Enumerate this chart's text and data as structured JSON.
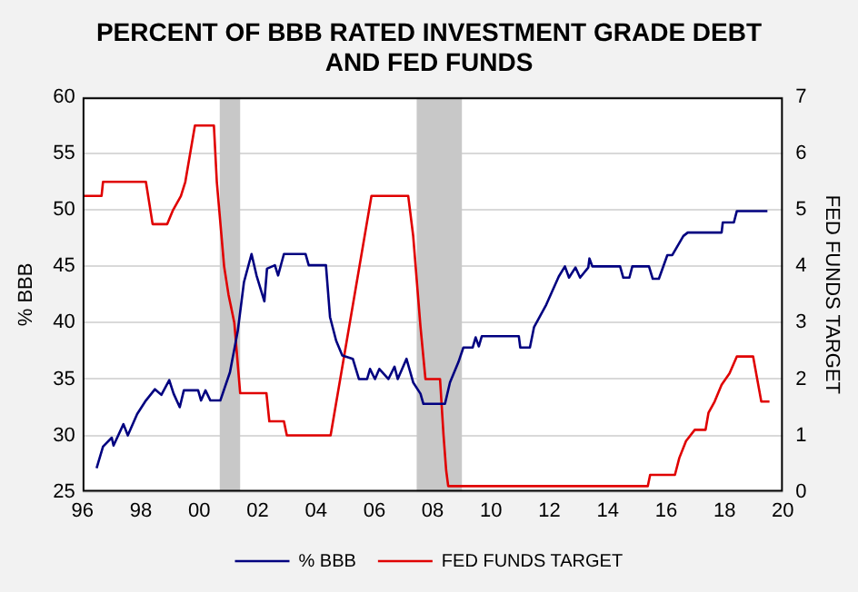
{
  "chart_data": {
    "type": "line",
    "title": "PERCENT OF BBB RATED INVESTMENT GRADE DEBT\nAND FED FUNDS",
    "ylabel": "% BBB",
    "y2label": "FED FUNDS TARGET",
    "xlim": [
      1996,
      2020
    ],
    "xticks": [
      {
        "value": 1996,
        "label": "96"
      },
      {
        "value": 1998,
        "label": "98"
      },
      {
        "value": 2000,
        "label": "00"
      },
      {
        "value": 2002,
        "label": "02"
      },
      {
        "value": 2004,
        "label": "04"
      },
      {
        "value": 2006,
        "label": "06"
      },
      {
        "value": 2008,
        "label": "08"
      },
      {
        "value": 2010,
        "label": "10"
      },
      {
        "value": 2012,
        "label": "12"
      },
      {
        "value": 2014,
        "label": "14"
      },
      {
        "value": 2016,
        "label": "16"
      },
      {
        "value": 2018,
        "label": "18"
      },
      {
        "value": 2020,
        "label": "20"
      }
    ],
    "ylim": [
      25,
      60
    ],
    "yticks": [
      25,
      30,
      35,
      40,
      45,
      50,
      55,
      60
    ],
    "y2lim": [
      0,
      7
    ],
    "y2ticks": [
      0,
      1,
      2,
      3,
      4,
      5,
      6,
      7
    ],
    "grid": "y",
    "legend": "bottom",
    "bands": [
      {
        "axis": "x",
        "from": 2000.7,
        "to": 2001.4,
        "color": "#c8c8c8"
      },
      {
        "axis": "x",
        "from": 2007.45,
        "to": 2009.0,
        "color": "#c8c8c8"
      }
    ],
    "series": [
      {
        "name": "% BBB",
        "color": "#000080",
        "x": [
          1996.48,
          1996.7,
          1997.0,
          1997.06,
          1997.4,
          1997.55,
          1997.87,
          1998.17,
          1998.48,
          1998.7,
          1998.97,
          1999.12,
          1999.33,
          1999.47,
          1999.96,
          2000.06,
          2000.21,
          2000.38,
          2000.72,
          2001.05,
          2001.32,
          2001.53,
          2001.79,
          2001.96,
          2002.23,
          2002.32,
          2002.59,
          2002.7,
          2002.9,
          2003.64,
          2003.75,
          2004.34,
          2004.48,
          2004.69,
          2004.9,
          2005.26,
          2005.47,
          2005.75,
          2005.85,
          2006.02,
          2006.17,
          2006.48,
          2006.69,
          2006.8,
          2007.1,
          2007.33,
          2007.58,
          2007.68,
          2008.42,
          2008.59,
          2008.88,
          2009.05,
          2009.37,
          2009.47,
          2009.58,
          2009.68,
          2010.95,
          2011.0,
          2011.33,
          2011.47,
          2011.89,
          2012.32,
          2012.53,
          2012.67,
          2012.89,
          2013.05,
          2013.33,
          2013.37,
          2013.47,
          2014.42,
          2014.53,
          2014.74,
          2014.84,
          2015.26,
          2015.41,
          2015.54,
          2015.75,
          2016.04,
          2016.21,
          2016.59,
          2016.74,
          2017.9,
          2017.94,
          2018.32,
          2018.42,
          2019.47
        ],
        "values": [
          27.1,
          29.0,
          29.8,
          29.1,
          31.0,
          30.0,
          31.9,
          33.1,
          34.1,
          33.6,
          34.9,
          33.7,
          32.5,
          34.0,
          34.0,
          33.1,
          34.0,
          33.1,
          33.1,
          35.6,
          39.3,
          43.6,
          46.1,
          44.2,
          41.9,
          44.8,
          45.1,
          44.2,
          46.1,
          46.1,
          45.1,
          45.1,
          40.5,
          38.4,
          37.1,
          36.8,
          35.0,
          35.0,
          35.9,
          35.0,
          35.9,
          35.0,
          36.1,
          35.0,
          36.8,
          34.7,
          33.7,
          32.8,
          32.8,
          34.7,
          36.5,
          37.8,
          37.8,
          38.7,
          37.9,
          38.8,
          38.8,
          37.8,
          37.8,
          39.6,
          41.6,
          44.1,
          45.0,
          44.0,
          44.9,
          44.0,
          44.9,
          45.7,
          45.0,
          45.0,
          44.0,
          44.0,
          45.0,
          45.0,
          45.0,
          43.9,
          43.9,
          46.0,
          46.0,
          47.7,
          48.0,
          48.0,
          48.9,
          48.9,
          49.9,
          49.9
        ]
      },
      {
        "name": "FED FUNDS TARGET",
        "color": "#e00000",
        "axis": "y2",
        "x": [
          1996,
          1996.65,
          1996.7,
          1998.17,
          1998.4,
          1998.9,
          1999.1,
          1999.37,
          1999.52,
          1999.85,
          2000.5,
          2000.6,
          2000.85,
          2001.0,
          2001.2,
          2001.4,
          2002.3,
          2002.4,
          2002.9,
          2003.0,
          2004.5,
          2005.9,
          2007.1,
          2007.16,
          2007.33,
          2007.58,
          2007.75,
          2008.25,
          2008.37,
          2008.46,
          2008.53,
          2015.37,
          2015.45,
          2016.3,
          2016.45,
          2016.68,
          2016.98,
          2017.35,
          2017.45,
          2017.66,
          2017.9,
          2018.17,
          2018.42,
          2018.98,
          2019.26,
          2019.54
        ],
        "values": [
          5.25,
          5.25,
          5.5,
          5.5,
          4.75,
          4.75,
          5.0,
          5.25,
          5.5,
          6.5,
          6.5,
          5.5,
          4.0,
          3.5,
          3.0,
          1.75,
          1.75,
          1.25,
          1.25,
          1.0,
          1.0,
          5.25,
          5.25,
          5.25,
          4.54,
          2.93,
          2.0,
          2.0,
          1.0,
          0.38,
          0.1,
          0.1,
          0.3,
          0.3,
          0.6,
          0.9,
          1.1,
          1.1,
          1.4,
          1.6,
          1.9,
          2.1,
          2.4,
          2.4,
          1.6,
          1.6
        ]
      }
    ]
  }
}
